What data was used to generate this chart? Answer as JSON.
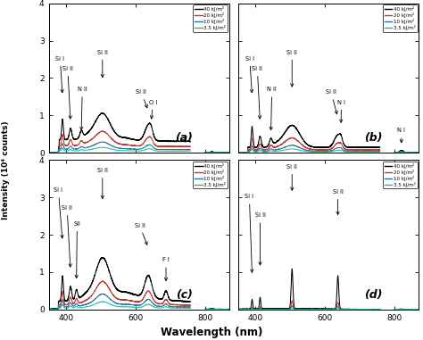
{
  "xlabel": "Wavelength (nm)",
  "ylabel": "Intensity (10⁴ counts)",
  "xlim": [
    350,
    870
  ],
  "ylim": [
    0,
    4
  ],
  "colors": {
    "40": "#000000",
    "20": "#c0392b",
    "10": "#2471a3",
    "3.5": "#1abc9c"
  },
  "legend_labels": [
    "40 kJ/m²",
    "20 kJ/m²",
    "10 kJ/m²",
    "3.5 kJ/m²"
  ],
  "panel_labels": [
    "(a)",
    "(b)",
    "(c)",
    "(d)"
  ],
  "yticks": [
    0,
    1,
    2,
    3,
    4
  ],
  "xticks": [
    400,
    600,
    800
  ],
  "gap_start": 758,
  "gap_end": 800
}
